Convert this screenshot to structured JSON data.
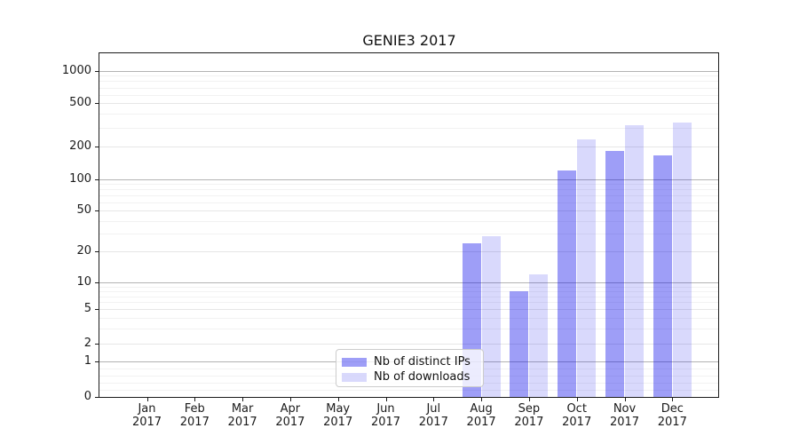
{
  "title": "GENIE3 2017",
  "chart_data": {
    "type": "bar",
    "title": "GENIE3 2017",
    "categories": [
      "Jan 2017",
      "Feb 2017",
      "Mar 2017",
      "Apr 2017",
      "May 2017",
      "Jun 2017",
      "Jul 2017",
      "Aug 2017",
      "Sep 2017",
      "Oct 2017",
      "Nov 2017",
      "Dec 2017"
    ],
    "series": [
      {
        "name": "Nb of distinct IPs",
        "values": [
          0,
          0,
          0,
          0,
          0,
          0,
          0,
          24,
          8,
          120,
          182,
          166
        ],
        "color": "rgba(0,0,235,0.38)"
      },
      {
        "name": "Nb of downloads",
        "values": [
          0,
          0,
          0,
          0,
          0,
          0,
          0,
          28,
          12,
          234,
          315,
          333
        ],
        "color": "rgba(0,0,235,0.15)"
      }
    ],
    "yscale": "symlog",
    "yticks": [
      0,
      1,
      2,
      5,
      10,
      20,
      50,
      100,
      200,
      500,
      1000
    ],
    "yticks_minor": [
      0.2,
      0.4,
      0.6,
      0.8,
      3,
      4,
      6,
      7,
      8,
      9,
      30,
      40,
      60,
      70,
      80,
      90,
      300,
      400,
      600,
      700,
      800,
      900
    ],
    "ylim": [
      0,
      1450
    ],
    "xlabel": "",
    "ylabel": "",
    "grid": "horizontal",
    "legend_position": "lower-center-inside"
  },
  "legend": {
    "items": [
      {
        "label": "Nb of distinct IPs",
        "color": "rgba(0,0,235,0.38)"
      },
      {
        "label": "Nb of downloads",
        "color": "rgba(0,0,235,0.15)"
      }
    ]
  },
  "colors": {
    "bar_distinct_ips": "#9e9ef5",
    "bar_downloads": "#d9d9fb",
    "grid_major": "#b3b3b3",
    "grid_mid": "#e6e6e6",
    "grid_minor": "#f2f2f2",
    "axis": "#1c1c1c"
  }
}
